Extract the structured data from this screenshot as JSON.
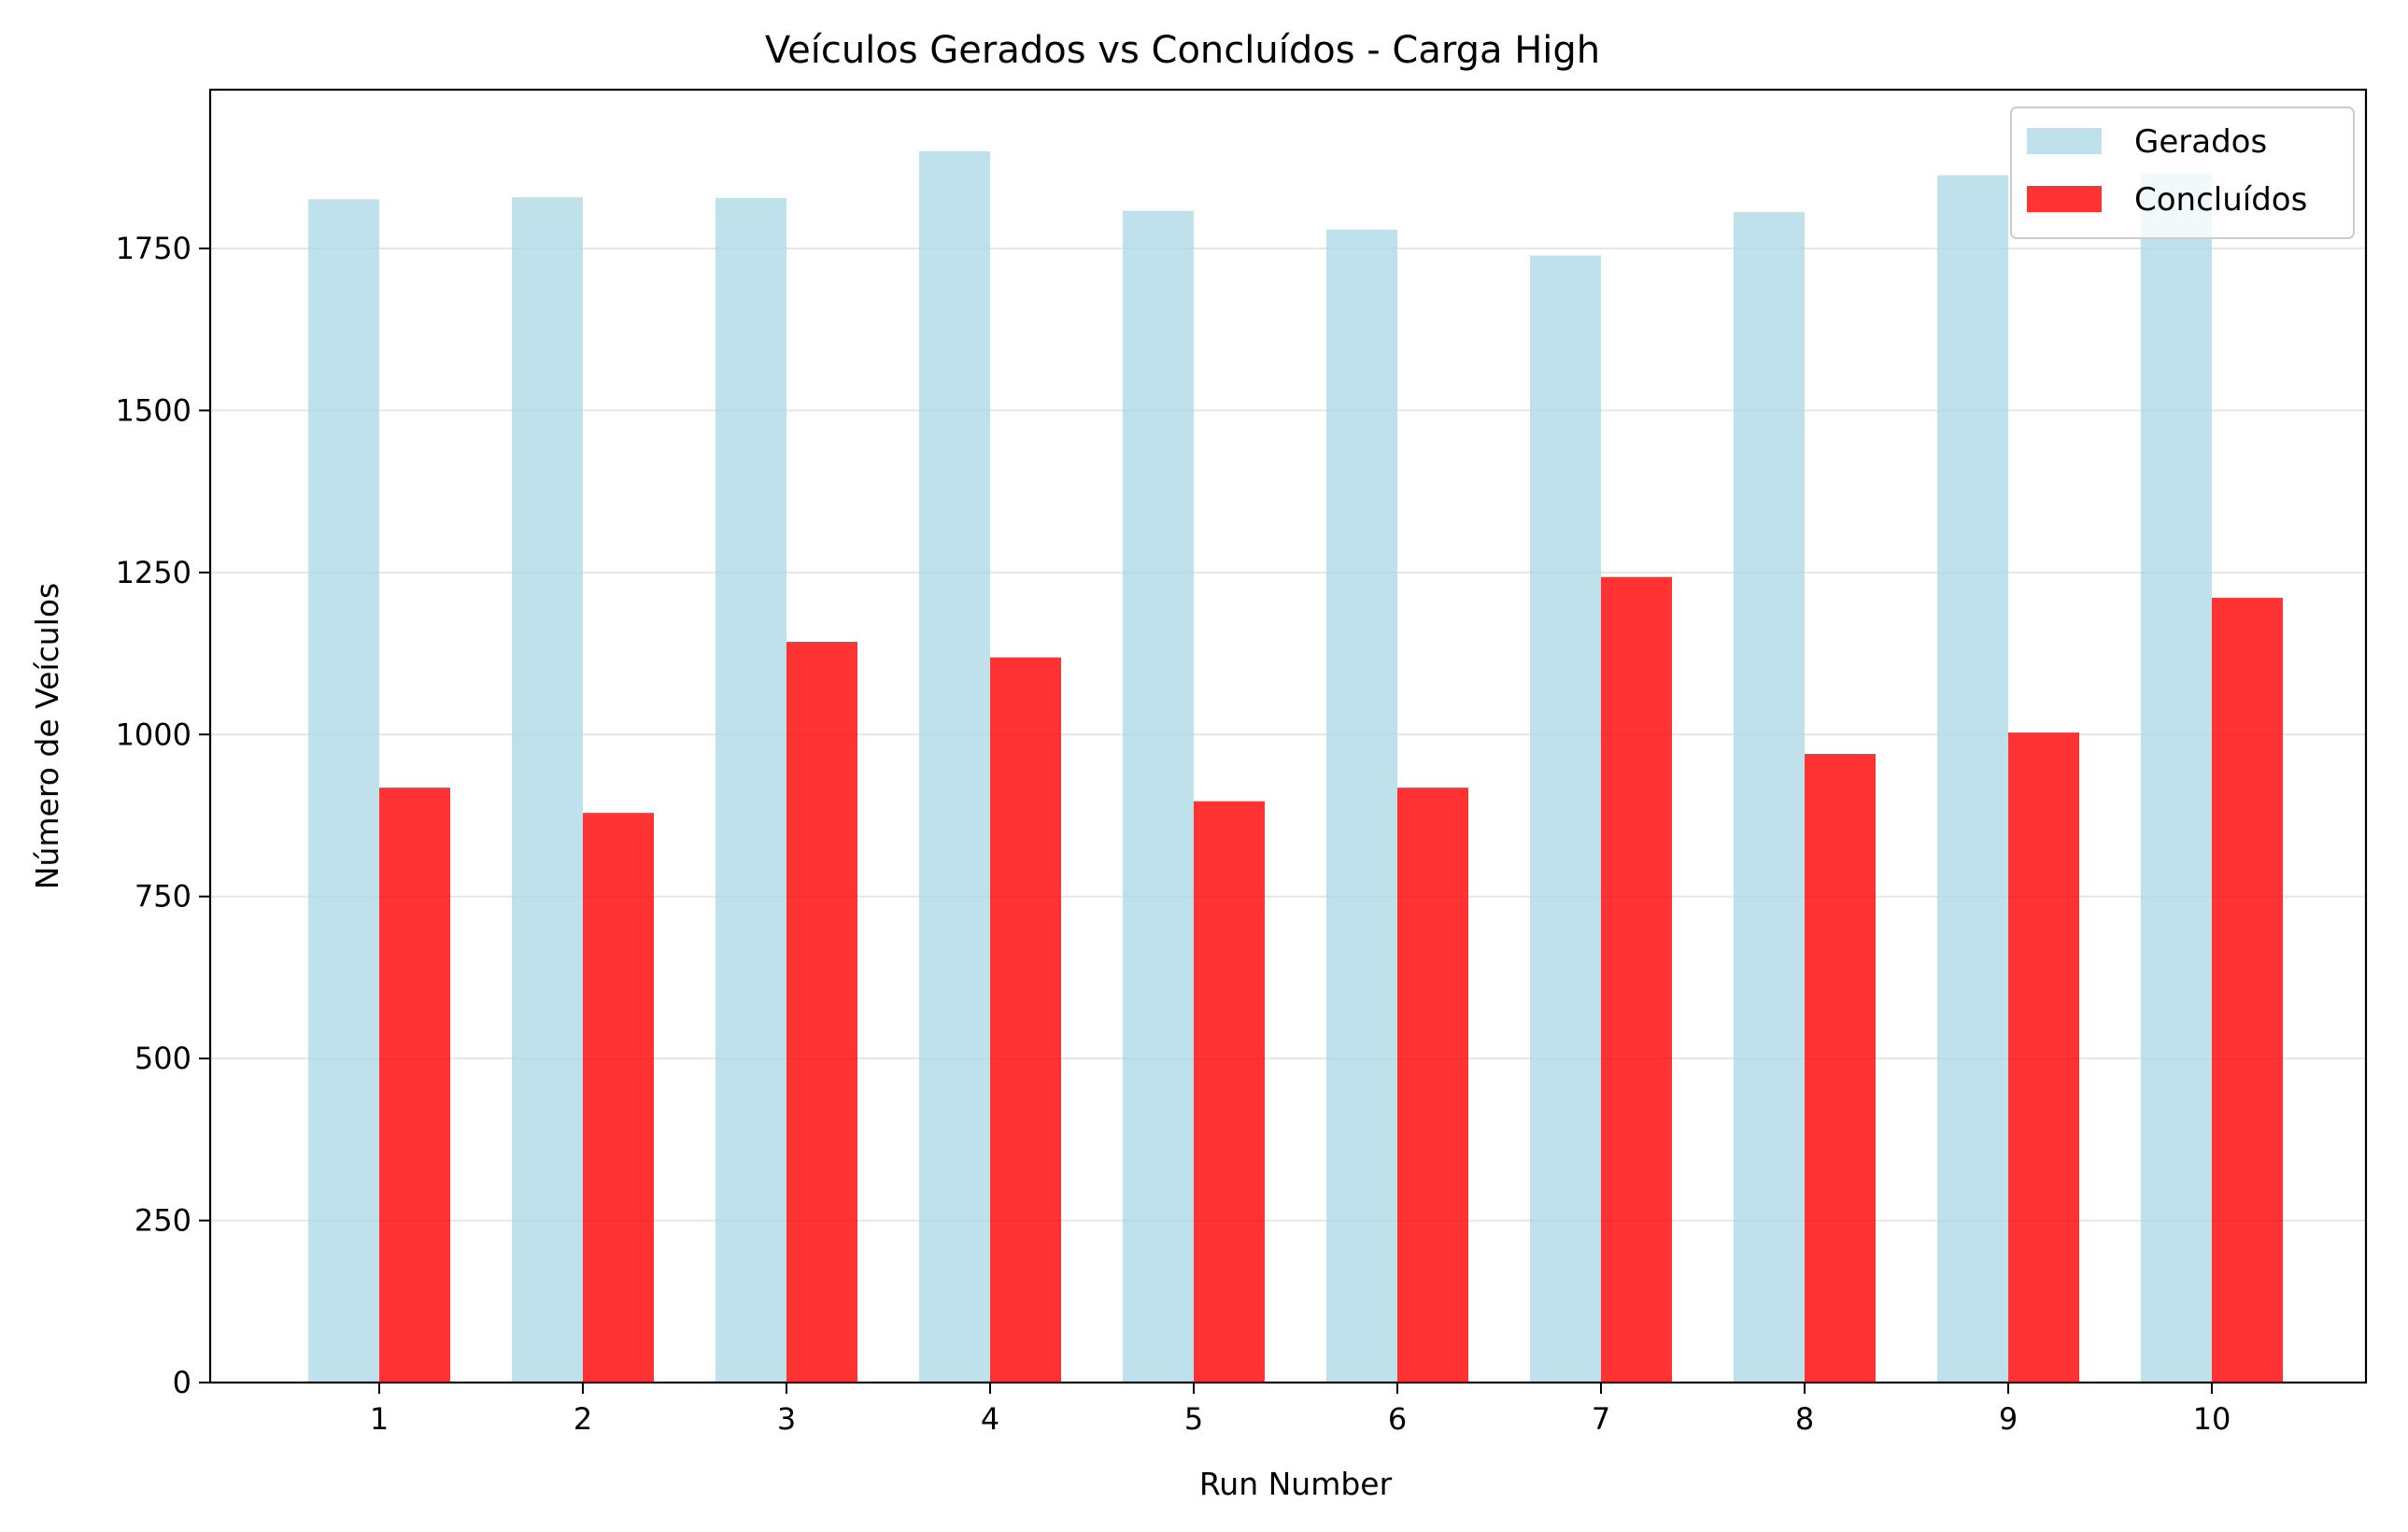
{
  "chart_data": {
    "type": "bar",
    "title": "Veículos Gerados vs Concluídos - Carga High",
    "xlabel": "Run Number",
    "ylabel": "Número de Veículos",
    "categories": [
      "1",
      "2",
      "3",
      "4",
      "5",
      "6",
      "7",
      "8",
      "9",
      "10"
    ],
    "series": [
      {
        "name": "Gerados",
        "color": "#add8e6",
        "values": [
          1826,
          1829,
          1828,
          1900,
          1808,
          1779,
          1739,
          1806,
          1863,
          1866
        ]
      },
      {
        "name": "Concluídos",
        "color": "#ff0000",
        "values": [
          918,
          879,
          1143,
          1119,
          897,
          918,
          1243,
          970,
          1003,
          1211
        ]
      }
    ],
    "ylim": [
      0,
      1995
    ],
    "yticks": [
      0,
      250,
      500,
      750,
      1000,
      1250,
      1500,
      1750
    ],
    "grid": "horizontal",
    "legend": "top-right"
  }
}
